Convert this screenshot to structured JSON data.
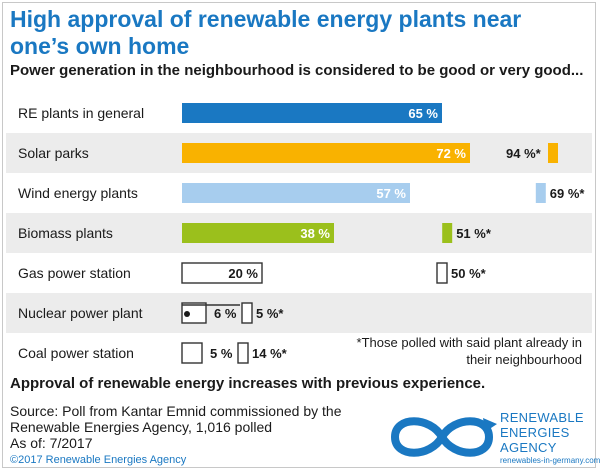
{
  "header": {
    "title": "High approval of renewable energy plants near one’s own home",
    "subtitle": "Power generation in the neighbourhood is considered to be good or very good..."
  },
  "footnote": "*Those polled with said plant already in their neighbourhood",
  "takeaway": "Approval of renewable energy increases with previous experience.",
  "source": {
    "line1": "Source: Poll from Kantar Emnid commissioned by the",
    "line2": "Renewable Energies Agency, 1,016 polled",
    "line3": "As of: 7/2017"
  },
  "copyright": "©2017 Renewable Energies Agency",
  "logo": {
    "line1": "RENEWABLE",
    "line2": "ENERGIES",
    "line3": "AGENCY",
    "url": "renewables-in-germany.com",
    "icon": "infinity-arrow-icon"
  },
  "chart_data": {
    "type": "bar",
    "categories": [
      "RE plants in general",
      "Solar parks",
      "Wind energy plants",
      "Biomass plants",
      "Gas power station",
      "Nuclear power plant",
      "Coal power station"
    ],
    "series": [
      {
        "values": [
          65,
          72,
          57,
          38,
          20,
          6,
          5
        ],
        "labels": [
          "65 %",
          "72 %",
          "57 %",
          "38 %",
          "20 %",
          "6 %",
          "5 %"
        ],
        "colors": [
          "#1a78c2",
          "#f9b200",
          "#a7cdee",
          "#9bc01c",
          "#ffffff",
          "#ffffff",
          "#ffffff"
        ]
      },
      {
        "values": [
          null,
          94,
          69,
          51,
          50,
          5,
          14
        ],
        "labels": [
          "",
          "94 %*",
          "69 %*",
          "51 %*",
          "50 %*",
          "5 %*",
          "14 %*"
        ],
        "colors": [
          "",
          "#f9b200",
          "#a7cdee",
          "#9bc01c",
          "#ffffff",
          "#ffffff",
          "#ffffff"
        ]
      }
    ],
    "xlim": [
      0,
      100
    ],
    "grid": false,
    "row_background": [
      "#ffffff",
      "#ececec"
    ]
  }
}
